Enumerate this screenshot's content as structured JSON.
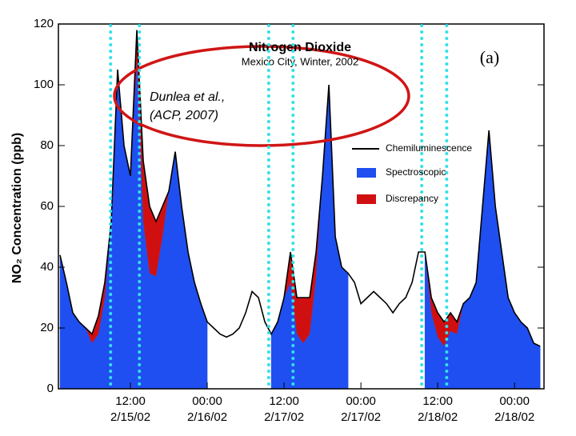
{
  "chart_data": {
    "type": "area",
    "title": "Nitrogen Dioxide",
    "subtitle": "Mexico City, Winter, 2002",
    "panel_label": "(a)",
    "annotation": [
      "Dunlea et al.,",
      "(ACP, 2007)"
    ],
    "y_label": "NO₂ Concentration (ppb)",
    "x": [
      1,
      2,
      3,
      4,
      5,
      6,
      7,
      8,
      9,
      10,
      11,
      12,
      13,
      14,
      15,
      16,
      17,
      18,
      19,
      20,
      21,
      22,
      23,
      24,
      25,
      26,
      27,
      28,
      29,
      30,
      31,
      32,
      33,
      34,
      35,
      36,
      37,
      38,
      39,
      40,
      41,
      42,
      43,
      44,
      45,
      46,
      47,
      48,
      49,
      50,
      51,
      52,
      53,
      54,
      55,
      56,
      57,
      58,
      59,
      60,
      61,
      62,
      63,
      64,
      65,
      66,
      67,
      68,
      69,
      70,
      71,
      72,
      73,
      74,
      75,
      76
    ],
    "xlim": [
      0.75,
      76.6
    ],
    "xticks": [
      {
        "value": 12,
        "label": "12:00",
        "date": "2/15/02"
      },
      {
        "value": 24,
        "label": "00:00",
        "date": "2/16/02"
      },
      {
        "value": 36,
        "label": "12:00",
        "date": "2/17/02"
      },
      {
        "value": 48,
        "label": "00:00",
        "date": "2/17/02"
      },
      {
        "value": 60,
        "label": "12:00",
        "date": "2/18/02"
      },
      {
        "value": 72,
        "label": "00:00",
        "date": "2/18/02"
      }
    ],
    "ylim": [
      0,
      120
    ],
    "yticks": [
      0,
      20,
      40,
      60,
      80,
      100,
      120
    ],
    "vertical_lines": [
      8.9,
      13.4,
      33.6,
      37.4,
      57.5,
      61.4
    ],
    "vertical_line_color": "#33e0ea",
    "series": [
      {
        "name": "Chemiluminescence",
        "kind": "line",
        "color": "#000000",
        "values": [
          44,
          35,
          25,
          22,
          20,
          18,
          24,
          35,
          55,
          105,
          80,
          70,
          118,
          75,
          60,
          55,
          60,
          65,
          78,
          60,
          45,
          35,
          28,
          22,
          20,
          18,
          17,
          18,
          20,
          25,
          32,
          30,
          22,
          18,
          22,
          30,
          45,
          30,
          30,
          30,
          45,
          70,
          100,
          50,
          40,
          38,
          35,
          28,
          30,
          32,
          30,
          28,
          25,
          28,
          30,
          35,
          45,
          45,
          30,
          25,
          22,
          25,
          22,
          28,
          30,
          35,
          60,
          85,
          60,
          45,
          30,
          25,
          22,
          20,
          15,
          14
        ]
      },
      {
        "name": "Spectroscopic",
        "kind": "area",
        "color": "#1f4ff0",
        "values": [
          44,
          35,
          25,
          22,
          20,
          15,
          18,
          30,
          55,
          105,
          80,
          70,
          108,
          55,
          38,
          37,
          50,
          65,
          78,
          60,
          45,
          35,
          28,
          22,
          null,
          null,
          null,
          null,
          null,
          null,
          null,
          null,
          null,
          18,
          22,
          30,
          35,
          18,
          15,
          18,
          37,
          70,
          100,
          50,
          40,
          38,
          null,
          null,
          null,
          null,
          null,
          null,
          null,
          null,
          null,
          null,
          null,
          45,
          25,
          17,
          14,
          19,
          18,
          28,
          30,
          35,
          60,
          85,
          60,
          45,
          30,
          25,
          22,
          20,
          15,
          14
        ]
      },
      {
        "name": "Discrepancy",
        "kind": "stacked-area",
        "color": "#d01010",
        "values": [
          0,
          0,
          0,
          0,
          0,
          3,
          6,
          5,
          0,
          0,
          0,
          0,
          10,
          20,
          22,
          18,
          10,
          0,
          0,
          0,
          0,
          0,
          0,
          0,
          null,
          null,
          null,
          null,
          null,
          null,
          null,
          null,
          null,
          0,
          0,
          0,
          10,
          12,
          15,
          12,
          8,
          0,
          0,
          0,
          0,
          0,
          null,
          null,
          null,
          null,
          null,
          null,
          null,
          null,
          null,
          null,
          null,
          0,
          5,
          8,
          8,
          6,
          4,
          0,
          0,
          0,
          0,
          0,
          0,
          0,
          0,
          0,
          0,
          0,
          0,
          0
        ]
      }
    ]
  }
}
